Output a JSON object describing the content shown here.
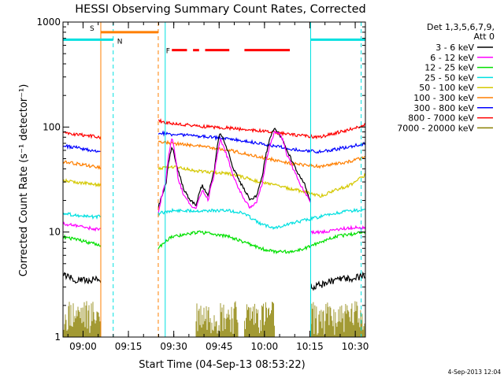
{
  "chart_data": {
    "type": "line",
    "title": "HESSI Observing Summary Count Rates, Corrected",
    "xlabel": "Start Time (04-Sep-13 08:53:22)",
    "ylabel": "Corrected Count Rate (s⁻¹ detector⁻¹)",
    "y_scale": "log",
    "ylim": [
      1,
      1000
    ],
    "xlim_minutes": [
      0,
      100
    ],
    "y_ticks": [
      {
        "label": "1",
        "value": 1
      },
      {
        "label": "10",
        "value": 10
      },
      {
        "label": "100",
        "value": 100
      },
      {
        "label": "1000",
        "value": 1000
      }
    ],
    "x_ticks": [
      {
        "label": "09:00",
        "min": 6.63
      },
      {
        "label": "09:15",
        "min": 21.63
      },
      {
        "label": "09:30",
        "min": 36.63
      },
      {
        "label": "09:45",
        "min": 51.63
      },
      {
        "label": "10:00",
        "min": 66.63
      },
      {
        "label": "10:15",
        "min": 81.63
      },
      {
        "label": "10:30",
        "min": 96.63
      }
    ],
    "legend": {
      "header": [
        "Det 1,3,5,6,7,9,",
        "Att 0"
      ],
      "placement": "right",
      "entries": [
        {
          "label": "3 - 6 keV",
          "color": "#000000"
        },
        {
          "label": "6 - 12 keV",
          "color": "#ff00ff"
        },
        {
          "label": "12 - 25 keV",
          "color": "#00e000"
        },
        {
          "label": "25 - 50 keV",
          "color": "#00e0e0"
        },
        {
          "label": "50 - 100 keV",
          "color": "#d4c800"
        },
        {
          "label": "100 - 300 keV",
          "color": "#ff7f00"
        },
        {
          "label": "300 - 800 keV",
          "color": "#0000ff"
        },
        {
          "label": "800 - 7000 keV",
          "color": "#ff0000"
        },
        {
          "label": "7000 - 20000 keV",
          "color": "#8b8000"
        }
      ]
    },
    "flags": [
      {
        "label": "S",
        "color": "#ff7f00"
      },
      {
        "label": "N",
        "color": "#00e0e0"
      },
      {
        "label": "F",
        "color": "#ff0000"
      }
    ],
    "gap_minutes": [
      12.5,
      31.5
    ],
    "series": [
      {
        "key": "s_red",
        "color": "#ff0000",
        "segments": [
          {
            "x": [
              0,
              4,
              8,
              12.5
            ],
            "y": [
              88,
              85,
              83,
              80
            ]
          },
          {
            "x": [
              31.5,
              36,
              45,
              55,
              65,
              75,
              85,
              95,
              100
            ],
            "y": [
              115,
              108,
              102,
              98,
              92,
              85,
              80,
              95,
              105
            ]
          }
        ]
      },
      {
        "key": "s_blue",
        "color": "#0000ff",
        "segments": [
          {
            "x": [
              0,
              4,
              8,
              12.5
            ],
            "y": [
              66,
              64,
              61,
              58
            ]
          },
          {
            "x": [
              31.5,
              36,
              45,
              55,
              65,
              75,
              85,
              95,
              100
            ],
            "y": [
              88,
              85,
              82,
              77,
              70,
              62,
              58,
              65,
              70
            ]
          }
        ]
      },
      {
        "key": "s_orange",
        "color": "#ff7f00",
        "segments": [
          {
            "x": [
              0,
              4,
              8,
              12.5
            ],
            "y": [
              47,
              45,
              43,
              41
            ]
          },
          {
            "x": [
              31.5,
              36,
              45,
              55,
              65,
              75,
              85,
              95,
              100
            ],
            "y": [
              72,
              70,
              66,
              60,
              52,
              45,
              42,
              47,
              52
            ]
          }
        ]
      },
      {
        "key": "s_yellow",
        "color": "#d4c800",
        "segments": [
          {
            "x": [
              0,
              4,
              8,
              12.5
            ],
            "y": [
              31,
              30,
              29,
              28
            ]
          },
          {
            "x": [
              31.5,
              36,
              45,
              55,
              65,
              75,
              85,
              95,
              100
            ],
            "y": [
              40,
              42,
              38,
              36,
              30,
              26,
              22,
              28,
              35
            ]
          }
        ]
      },
      {
        "key": "s_black",
        "color": "#000000",
        "segments": [
          {
            "x": [
              0,
              4,
              8,
              12.5
            ],
            "y": [
              4,
              3.5,
              3.5,
              3.5
            ]
          },
          {
            "x": [
              31.5,
              34,
              36,
              38,
              40,
              42,
              44,
              46,
              48,
              50,
              52,
              54,
              56,
              58,
              60,
              62,
              64,
              66,
              68,
              70,
              72,
              74,
              76,
              78,
              80,
              82
            ],
            "y": [
              17,
              28,
              65,
              38,
              25,
              20,
              18,
              28,
              22,
              38,
              90,
              65,
              42,
              32,
              25,
              20,
              22,
              35,
              70,
              100,
              80,
              60,
              45,
              35,
              28,
              18
            ]
          },
          {
            "x": [
              82,
              86,
              90,
              95,
              100
            ],
            "y": [
              3,
              3.2,
              3.5,
              3.6,
              3.8
            ]
          }
        ]
      },
      {
        "key": "s_magenta",
        "color": "#ff00ff",
        "segments": [
          {
            "x": [
              0,
              4,
              8,
              12.5
            ],
            "y": [
              12,
              11.5,
              11,
              10.5
            ]
          },
          {
            "x": [
              31.5,
              34,
              36,
              38,
              40,
              42,
              44,
              46,
              48,
              50,
              52,
              54,
              56,
              58,
              60,
              62,
              64,
              66,
              68,
              70,
              72,
              74,
              76,
              78,
              80,
              82
            ],
            "y": [
              15,
              30,
              80,
              32,
              22,
              18,
              17,
              25,
              20,
              35,
              75,
              55,
              35,
              26,
              20,
              17,
              19,
              30,
              60,
              90,
              85,
              55,
              40,
              30,
              24,
              18
            ]
          },
          {
            "x": [
              82,
              86,
              90,
              95,
              100
            ],
            "y": [
              10,
              10,
              10.5,
              11,
              11
            ]
          }
        ]
      },
      {
        "key": "s_cyan",
        "color": "#00e0e0",
        "segments": [
          {
            "x": [
              0,
              4,
              8,
              12.5
            ],
            "y": [
              15,
              14.5,
              14,
              14
            ]
          },
          {
            "x": [
              31.5,
              36,
              45,
              55,
              60,
              65,
              70,
              75,
              80,
              85,
              90,
              95,
              100
            ],
            "y": [
              15,
              16,
              16,
              16,
              15,
              12,
              11,
              12,
              13,
              14,
              15,
              16,
              16
            ]
          }
        ]
      },
      {
        "key": "s_green",
        "color": "#00e000",
        "segments": [
          {
            "x": [
              0,
              4,
              8,
              12.5
            ],
            "y": [
              9,
              8.5,
              8,
              7.5
            ]
          },
          {
            "x": [
              31.5,
              36,
              45,
              55,
              60,
              65,
              70,
              75,
              80,
              85,
              90,
              95,
              100
            ],
            "y": [
              7,
              9,
              10,
              9,
              8,
              7,
              6.5,
              6.5,
              7,
              8,
              9,
              9.5,
              10
            ]
          }
        ]
      },
      {
        "key": "s_olive",
        "color": "#8b8000",
        "segments": [
          {
            "x": [
              0,
              12.5
            ],
            "y": [
              1.5,
              1.5
            ]
          },
          {
            "x": [
              44,
              58
            ],
            "y": [
              1.5,
              1.5
            ]
          },
          {
            "x": [
              60,
              70
            ],
            "y": [
              1.4,
              1.4
            ]
          },
          {
            "x": [
              82,
              100
            ],
            "y": [
              1.5,
              1.5
            ]
          }
        ]
      }
    ],
    "annotation_lines": [
      {
        "color": "#ff7f00",
        "style": "solid",
        "min": 12.5
      },
      {
        "color": "#00e0e0",
        "style": "dashed",
        "min": 16.6
      },
      {
        "color": "#ff7f00",
        "style": "dashed",
        "min": 31.5
      },
      {
        "color": "#00e0e0",
        "style": "solid",
        "min": 33.8
      },
      {
        "color": "#00e0e0",
        "style": "solid",
        "min": 81.9
      },
      {
        "color": "#00e0e0",
        "style": "dashed",
        "min": 98.6
      }
    ],
    "top_bars": [
      {
        "color": "#00e0e0",
        "from": 0,
        "to": 16.6,
        "level": 680
      },
      {
        "color": "#ff7f00",
        "from": 12.5,
        "to": 31.5,
        "level": 800
      },
      {
        "color": "#00e0e0",
        "from": 81.9,
        "to": 100,
        "level": 680
      },
      {
        "color": "#ff0000",
        "from": 36,
        "to": 41,
        "level": 540
      },
      {
        "color": "#ff0000",
        "from": 43,
        "to": 45,
        "level": 540
      },
      {
        "color": "#ff0000",
        "from": 47,
        "to": 55,
        "level": 540
      },
      {
        "color": "#ff0000",
        "from": 60,
        "to": 75,
        "level": 540
      }
    ]
  },
  "footer": {
    "stamp": "4-Sep-2013 12:04"
  }
}
